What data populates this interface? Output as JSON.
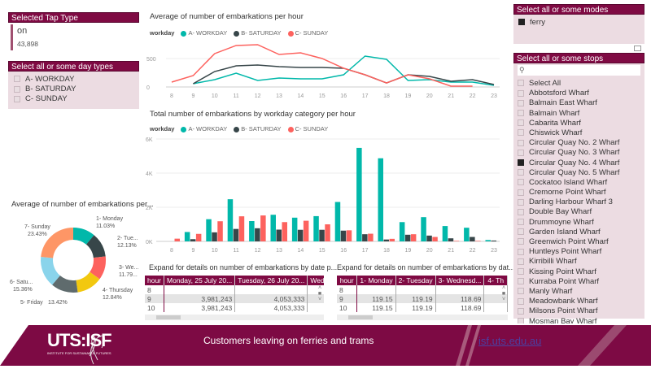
{
  "tap_type": {
    "header": "Selected Tap Type",
    "value": "on",
    "count": "43,898"
  },
  "day_types": {
    "header": "Select all or some day types",
    "items": [
      "A- WORKDAY",
      "B- SATURDAY",
      "C- SUNDAY"
    ]
  },
  "modes": {
    "header": "Select all or some modes",
    "items": [
      {
        "label": "ferry",
        "checked": true
      }
    ]
  },
  "stops": {
    "header": "Select all or some stops",
    "search_placeholder": "",
    "items": [
      {
        "label": "Select All",
        "checked": false
      },
      {
        "label": "Abbotsford Wharf",
        "checked": false
      },
      {
        "label": "Balmain East Wharf",
        "checked": false
      },
      {
        "label": "Balmain Wharf",
        "checked": false
      },
      {
        "label": "Cabarita Wharf",
        "checked": false
      },
      {
        "label": "Chiswick Wharf",
        "checked": false
      },
      {
        "label": "Circular Quay No. 2 Wharf",
        "checked": false
      },
      {
        "label": "Circular Quay No. 3 Wharf",
        "checked": false
      },
      {
        "label": "Circular Quay No. 4 Wharf",
        "checked": true
      },
      {
        "label": "Circular Quay No. 5 Wharf",
        "checked": false
      },
      {
        "label": "Cockatoo Island Wharf",
        "checked": false
      },
      {
        "label": "Cremorne Point Wharf",
        "checked": false
      },
      {
        "label": "Darling Harbour Wharf 3",
        "checked": false
      },
      {
        "label": "Double Bay Wharf",
        "checked": false
      },
      {
        "label": "Drummoyne Wharf",
        "checked": false
      },
      {
        "label": "Garden Island Wharf",
        "checked": false
      },
      {
        "label": "Greenwich Point Wharf",
        "checked": false
      },
      {
        "label": "Huntleys Point Wharf",
        "checked": false
      },
      {
        "label": "Kirribilli Wharf",
        "checked": false
      },
      {
        "label": "Kissing Point Wharf",
        "checked": false
      },
      {
        "label": "Kurraba Point Wharf",
        "checked": false
      },
      {
        "label": "Manly Wharf",
        "checked": false
      },
      {
        "label": "Meadowbank Wharf",
        "checked": false
      },
      {
        "label": "Milsons Point Wharf",
        "checked": false
      },
      {
        "label": "Mosman Bay Wharf",
        "checked": false
      }
    ]
  },
  "colors": {
    "workday": "#01B8AA",
    "saturday": "#374649",
    "sunday": "#FD625E",
    "brand": "#7f0a43"
  },
  "chart_data": [
    {
      "type": "line",
      "title": "Average of number of embarkations per hour",
      "legend_title": "workday",
      "ylim": [
        0,
        800
      ],
      "yticks": [
        "0",
        "500"
      ],
      "x": [
        8,
        9,
        10,
        11,
        12,
        13,
        14,
        15,
        16,
        17,
        18,
        19,
        20,
        21,
        22,
        23
      ],
      "series": [
        {
          "name": "A- WORKDAY",
          "values": [
            null,
            57,
            129,
            243,
            114,
            157,
            143,
            143,
            214,
            543,
            486,
            114,
            129,
            86,
            86,
            29
          ]
        },
        {
          "name": "B- SATURDAY",
          "values": [
            null,
            57,
            271,
            371,
            386,
            357,
            343,
            343,
            329,
            214,
            71,
            214,
            186,
            100,
            129,
            43
          ]
        },
        {
          "name": "C- SUNDAY",
          "values": [
            86,
            200,
            586,
            729,
            743,
            571,
            600,
            500,
            329,
            214,
            71,
            214,
            143,
            14,
            14,
            null
          ]
        }
      ]
    },
    {
      "type": "bar",
      "title": "Total number of embarkations by workday category per hour",
      "legend_title": "workday",
      "ylim": [
        0,
        6000
      ],
      "yticks": [
        "0K",
        "2K",
        "4K",
        "6K"
      ],
      "x": [
        8,
        9,
        10,
        11,
        12,
        13,
        14,
        15,
        16,
        17,
        18,
        19,
        20,
        21,
        22,
        23
      ],
      "series": [
        {
          "name": "A- WORKDAY",
          "values": [
            0,
            550,
            1300,
            2470,
            1190,
            1560,
            1390,
            1480,
            2310,
            5480,
            4870,
            1130,
            1420,
            900,
            800,
            80
          ]
        },
        {
          "name": "B- SATURDAY",
          "values": [
            0,
            130,
            530,
            730,
            770,
            690,
            680,
            680,
            630,
            420,
            110,
            390,
            340,
            180,
            260,
            50
          ]
        },
        {
          "name": "C- SUNDAY",
          "values": [
            160,
            440,
            1180,
            1470,
            1520,
            1130,
            1210,
            1000,
            650,
            450,
            150,
            420,
            260,
            30,
            30,
            0
          ]
        }
      ]
    },
    {
      "type": "pie",
      "title": "Average of number of embarkations per...",
      "slices": [
        {
          "label": "1- Monday",
          "value": 11.03,
          "display": "11.03%",
          "color": "#01B8AA"
        },
        {
          "label": "2- Tue...",
          "value": 12.13,
          "display": "12.13%",
          "color": "#374649"
        },
        {
          "label": "3- We...",
          "value": 11.79,
          "display": "11.79...",
          "color": "#FD625E"
        },
        {
          "label": "4- Thursday",
          "value": 12.84,
          "display": "12.84%",
          "color": "#F2C80F"
        },
        {
          "label": "5- Friday",
          "value": 13.42,
          "display": "13.42%",
          "color": "#5F6B6D"
        },
        {
          "label": "6- Satu...",
          "value": 15.36,
          "display": "15.36%",
          "color": "#8AD4EB"
        },
        {
          "label": "7- Sunday",
          "value": 23.43,
          "display": "23.43%",
          "color": "#FE9666"
        }
      ]
    }
  ],
  "table1": {
    "title": "Expand for details on number of embarkations by date p...",
    "headers": [
      "hour",
      "Monday, 25 July 20...",
      "Tuesday, 26 July 20...",
      "Wed"
    ],
    "rows": [
      [
        "8",
        "",
        "",
        ""
      ],
      [
        "9",
        "3,981,243",
        "4,053,333",
        ""
      ],
      [
        "10",
        "3,981,243",
        "4,053,333",
        ""
      ]
    ]
  },
  "table2": {
    "title": "Expand for details on number of embarkations by dat...",
    "headers": [
      "hour",
      "1- Monday",
      "2- Tuesday",
      "3- Wednesd...",
      "4- Th"
    ],
    "rows": [
      [
        "8",
        "",
        "",
        "",
        ""
      ],
      [
        "9",
        "119.15",
        "119.19",
        "118.69",
        ""
      ],
      [
        "10",
        "119.15",
        "119.19",
        "118.69",
        ""
      ]
    ]
  },
  "footer": {
    "logo": "UTS:ISF",
    "logo_sub": "INSTITUTE FOR SUSTAINABLE FUTURES",
    "caption": "Customers leaving on ferries and trams",
    "link": "isf.uts.edu.au"
  }
}
